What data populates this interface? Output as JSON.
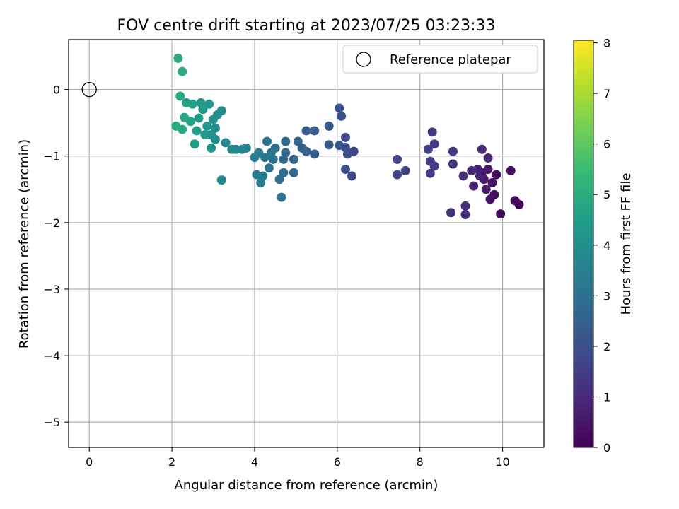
{
  "chart_data": {
    "type": "scatter",
    "title": "FOV centre drift starting at 2023/07/25 03:23:33",
    "xlabel": "Angular distance from reference (arcmin)",
    "ylabel": "Rotation from reference (arcmin)",
    "xlim": [
      -0.5,
      11.0
    ],
    "ylim": [
      -5.38,
      0.75
    ],
    "xticks": [
      0,
      2,
      4,
      6,
      8,
      10
    ],
    "yticks": [
      0,
      -1,
      -2,
      -3,
      -4,
      -5
    ],
    "grid": true,
    "legend": {
      "placement": "top-right",
      "entries": [
        "Reference platepar"
      ]
    },
    "reference_point": {
      "x": 0.0,
      "y": 0.0,
      "label": "Reference platepar",
      "marker": "open-circle"
    },
    "colorbar": {
      "label": "Hours from first FF file",
      "range": [
        0,
        8.05
      ],
      "ticks": [
        0,
        1,
        2,
        3,
        4,
        5,
        6,
        7,
        8
      ],
      "colormap": "viridis",
      "colormap_stops": [
        "#440154",
        "#482878",
        "#3e4989",
        "#31688e",
        "#26828e",
        "#1f9e89",
        "#35b779",
        "#6ece58",
        "#b5de2b",
        "#fde725"
      ]
    },
    "color_encoding": "hours",
    "series": [
      {
        "note": "each point: x = angular distance (arcmin), y = rotation (arcmin), c = hours from first FF file",
        "points": [
          {
            "x": 10.4,
            "y": -1.73,
            "c": 0.1
          },
          {
            "x": 10.3,
            "y": -1.67,
            "c": 0.15
          },
          {
            "x": 10.2,
            "y": -1.22,
            "c": 0.2
          },
          {
            "x": 9.95,
            "y": -1.87,
            "c": 0.25
          },
          {
            "x": 9.85,
            "y": -1.28,
            "c": 0.3
          },
          {
            "x": 9.8,
            "y": -1.58,
            "c": 0.35
          },
          {
            "x": 9.75,
            "y": -1.4,
            "c": 0.4
          },
          {
            "x": 9.7,
            "y": -1.65,
            "c": 0.45
          },
          {
            "x": 9.65,
            "y": -1.2,
            "c": 0.5
          },
          {
            "x": 9.6,
            "y": -1.5,
            "c": 0.55
          },
          {
            "x": 9.55,
            "y": -1.35,
            "c": 0.6
          },
          {
            "x": 9.5,
            "y": -1.25,
            "c": 0.65
          },
          {
            "x": 9.45,
            "y": -1.3,
            "c": 0.7
          },
          {
            "x": 9.4,
            "y": -1.2,
            "c": 0.75
          },
          {
            "x": 9.3,
            "y": -1.45,
            "c": 0.8
          },
          {
            "x": 9.25,
            "y": -1.22,
            "c": 0.85
          },
          {
            "x": 9.5,
            "y": -0.9,
            "c": 0.9
          },
          {
            "x": 9.65,
            "y": -1.03,
            "c": 0.95
          },
          {
            "x": 9.1,
            "y": -1.88,
            "c": 1.0
          },
          {
            "x": 9.1,
            "y": -1.75,
            "c": 1.05
          },
          {
            "x": 9.05,
            "y": -1.3,
            "c": 1.1
          },
          {
            "x": 8.75,
            "y": -1.85,
            "c": 1.15
          },
          {
            "x": 8.8,
            "y": -1.12,
            "c": 1.2
          },
          {
            "x": 8.8,
            "y": -0.93,
            "c": 1.25
          },
          {
            "x": 8.3,
            "y": -0.64,
            "c": 1.3
          },
          {
            "x": 8.35,
            "y": -0.82,
            "c": 1.35
          },
          {
            "x": 8.35,
            "y": -1.15,
            "c": 1.4
          },
          {
            "x": 8.25,
            "y": -1.08,
            "c": 1.45
          },
          {
            "x": 8.25,
            "y": -1.26,
            "c": 1.5
          },
          {
            "x": 8.2,
            "y": -0.9,
            "c": 1.55
          },
          {
            "x": 7.65,
            "y": -1.22,
            "c": 1.6
          },
          {
            "x": 7.45,
            "y": -1.28,
            "c": 1.65
          },
          {
            "x": 7.45,
            "y": -1.05,
            "c": 1.7
          },
          {
            "x": 6.4,
            "y": -0.93,
            "c": 1.75
          },
          {
            "x": 6.35,
            "y": -1.3,
            "c": 1.8
          },
          {
            "x": 6.2,
            "y": -0.72,
            "c": 1.85
          },
          {
            "x": 6.2,
            "y": -0.87,
            "c": 1.9
          },
          {
            "x": 6.2,
            "y": -1.2,
            "c": 1.95
          },
          {
            "x": 6.25,
            "y": -0.97,
            "c": 2.0
          },
          {
            "x": 6.1,
            "y": -0.4,
            "c": 2.05
          },
          {
            "x": 6.05,
            "y": -0.28,
            "c": 2.1
          },
          {
            "x": 6.05,
            "y": -0.84,
            "c": 2.15
          },
          {
            "x": 5.8,
            "y": -0.55,
            "c": 2.2
          },
          {
            "x": 5.8,
            "y": -0.83,
            "c": 2.25
          },
          {
            "x": 5.45,
            "y": -0.62,
            "c": 2.3
          },
          {
            "x": 5.45,
            "y": -0.97,
            "c": 2.35
          },
          {
            "x": 5.25,
            "y": -0.62,
            "c": 2.4
          },
          {
            "x": 5.25,
            "y": -0.93,
            "c": 2.45
          },
          {
            "x": 5.15,
            "y": -0.88,
            "c": 2.5
          },
          {
            "x": 5.05,
            "y": -0.78,
            "c": 2.55
          },
          {
            "x": 4.95,
            "y": -1.05,
            "c": 2.6
          },
          {
            "x": 4.95,
            "y": -1.25,
            "c": 2.65
          },
          {
            "x": 4.75,
            "y": -0.78,
            "c": 2.7
          },
          {
            "x": 4.75,
            "y": -0.95,
            "c": 2.75
          },
          {
            "x": 4.7,
            "y": -1.05,
            "c": 2.8
          },
          {
            "x": 4.7,
            "y": -1.25,
            "c": 2.85
          },
          {
            "x": 4.6,
            "y": -1.35,
            "c": 2.9
          },
          {
            "x": 4.65,
            "y": -1.62,
            "c": 2.95
          },
          {
            "x": 4.5,
            "y": -0.88,
            "c": 3.0
          },
          {
            "x": 4.45,
            "y": -1.05,
            "c": 3.05
          },
          {
            "x": 4.4,
            "y": -0.95,
            "c": 3.1
          },
          {
            "x": 4.35,
            "y": -1.18,
            "c": 3.15
          },
          {
            "x": 4.3,
            "y": -0.78,
            "c": 3.2
          },
          {
            "x": 4.25,
            "y": -1.02,
            "c": 3.25
          },
          {
            "x": 4.2,
            "y": -1.3,
            "c": 3.3
          },
          {
            "x": 4.15,
            "y": -1.4,
            "c": 3.35
          },
          {
            "x": 4.1,
            "y": -0.95,
            "c": 3.4
          },
          {
            "x": 4.05,
            "y": -1.28,
            "c": 3.45
          },
          {
            "x": 4.0,
            "y": -1.02,
            "c": 3.5
          },
          {
            "x": 3.8,
            "y": -0.88,
            "c": 3.55
          },
          {
            "x": 3.7,
            "y": -0.9,
            "c": 3.6
          },
          {
            "x": 3.55,
            "y": -0.9,
            "c": 3.65
          },
          {
            "x": 3.45,
            "y": -0.9,
            "c": 3.7
          },
          {
            "x": 3.3,
            "y": -0.8,
            "c": 3.75
          },
          {
            "x": 3.2,
            "y": -1.36,
            "c": 3.8
          },
          {
            "x": 3.2,
            "y": -0.32,
            "c": 3.85
          },
          {
            "x": 3.1,
            "y": -0.38,
            "c": 3.9
          },
          {
            "x": 3.05,
            "y": -0.58,
            "c": 3.95
          },
          {
            "x": 3.05,
            "y": -0.75,
            "c": 4.0
          },
          {
            "x": 3.0,
            "y": -0.45,
            "c": 4.05
          },
          {
            "x": 2.95,
            "y": -0.68,
            "c": 4.1
          },
          {
            "x": 2.95,
            "y": -0.88,
            "c": 4.15
          },
          {
            "x": 2.9,
            "y": -0.22,
            "c": 4.2
          },
          {
            "x": 2.85,
            "y": -0.55,
            "c": 4.25
          },
          {
            "x": 2.8,
            "y": -0.68,
            "c": 4.3
          },
          {
            "x": 2.75,
            "y": -0.3,
            "c": 4.35
          },
          {
            "x": 2.7,
            "y": -0.2,
            "c": 4.4
          },
          {
            "x": 2.65,
            "y": -0.43,
            "c": 4.45
          },
          {
            "x": 2.6,
            "y": -0.62,
            "c": 4.5
          },
          {
            "x": 2.55,
            "y": -0.82,
            "c": 4.55
          },
          {
            "x": 2.5,
            "y": -0.22,
            "c": 4.6
          },
          {
            "x": 2.45,
            "y": -0.48,
            "c": 4.65
          },
          {
            "x": 2.35,
            "y": -0.2,
            "c": 4.7
          },
          {
            "x": 2.3,
            "y": -0.42,
            "c": 4.75
          },
          {
            "x": 2.25,
            "y": -0.6,
            "c": 4.8
          },
          {
            "x": 2.2,
            "y": -0.1,
            "c": 4.85
          },
          {
            "x": 2.15,
            "y": 0.47,
            "c": 4.9
          },
          {
            "x": 2.25,
            "y": 0.27,
            "c": 4.95
          },
          {
            "x": 2.1,
            "y": -0.55,
            "c": 5.0
          }
        ]
      }
    ]
  }
}
